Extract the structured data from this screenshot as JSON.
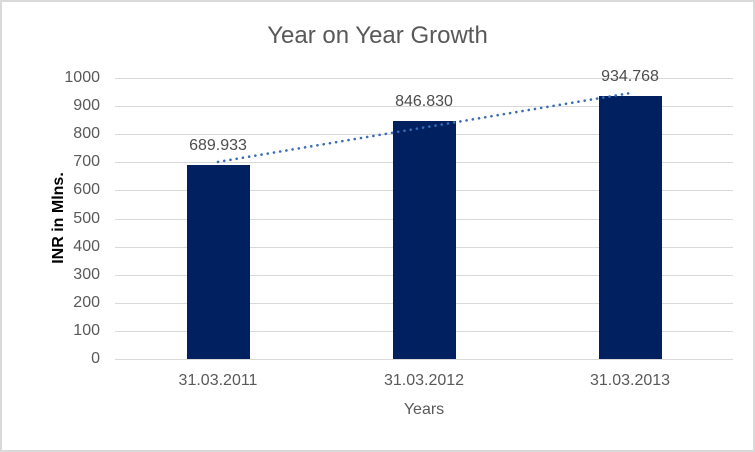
{
  "title": "Year on Year Growth",
  "chart_data": {
    "type": "bar",
    "title": "Year on Year Growth",
    "xlabel": "Years",
    "ylabel": "INR in Mlns.",
    "categories": [
      "31.03.2011",
      "31.03.2012",
      "31.03.2013"
    ],
    "values": [
      689.933,
      846.83,
      934.768
    ],
    "value_labels": [
      "689.933",
      "846.830",
      "934.768"
    ],
    "ylim": [
      0,
      1000
    ],
    "ytick_step": 100,
    "yticks": [
      0,
      100,
      200,
      300,
      400,
      500,
      600,
      700,
      800,
      900,
      1000
    ],
    "grid": true,
    "legend": false,
    "trendline": {
      "type": "linear",
      "style": "dotted"
    },
    "colors": {
      "bar": "#002060",
      "trendline": "#3A6CB5",
      "gridline": "#D9D9D9",
      "tick_text": "#595959",
      "title_text": "#595959",
      "data_label": "#4D4D4D",
      "axis_title": "#000000",
      "border": "#D9D9D9"
    }
  }
}
